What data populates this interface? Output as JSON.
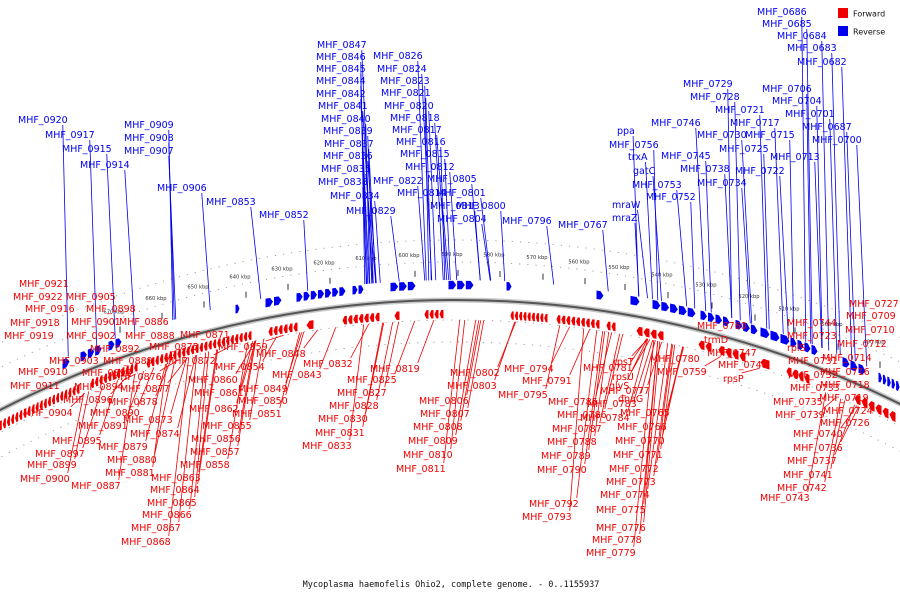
{
  "caption": "Mycoplasma haemofelis Ohio2, complete genome. - 0..1155937",
  "legend": [
    {
      "label": "Forward",
      "color": "#ee0000"
    },
    {
      "label": "Reverse",
      "color": "#0000ee"
    }
  ],
  "colors": {
    "forward": "#ee0000",
    "reverse": "#0000ee",
    "backbone": "#555555"
  },
  "ticks": [
    "490 kbp",
    "500 kbp",
    "510 kbp",
    "520 kbp",
    "530 kbp",
    "540 kbp",
    "550 kbp",
    "560 kbp",
    "570 kbp",
    "580 kbp",
    "590 kbp",
    "600 kbp",
    "610 kbp",
    "620 kbp",
    "630 kbp",
    "640 kbp",
    "650 kbp",
    "660 kbp",
    "670 kbp"
  ],
  "reverse_labels": [
    "MHF_0686",
    "MHF_0685",
    "MHF_0684",
    "MHF_0683",
    "MHF_0682",
    "MHF_0706",
    "MHF_0704",
    "MHF_0701",
    "MHF_0687",
    "MHF_0700",
    "MHF_0729",
    "MHF_0728",
    "MHF_0721",
    "MHF_0717",
    "MHF_0730",
    "MHF_0715",
    "MHF_0725",
    "MHF_0713",
    "MHF_0722",
    "MHF_0746",
    "MHF_0756",
    "MHF_0745",
    "MHF_0738",
    "MHF_0734",
    "MHF_0753",
    "MHF_0752",
    "ppa",
    "trxA",
    "gatC",
    "mraW",
    "mraZ",
    "MHF_0767",
    "MHF_0796",
    "MHF_0826",
    "MHF_0824",
    "MHF_0823",
    "MHF_0821",
    "MHF_0820",
    "MHF_0818",
    "MHF_0817",
    "MHF_0816",
    "MHF_0815",
    "MHF_0812",
    "MHF_0805",
    "MHF_0801",
    "MHF_0800",
    "MHF_0813",
    "MHF_0814",
    "MHF_0804",
    "MHF_0847",
    "MHF_0846",
    "MHF_0845",
    "MHF_0844",
    "MHF_0842",
    "MHF_0841",
    "MHF_0840",
    "MHF_0839",
    "MHF_0837",
    "MHF_0836",
    "MHF_0835",
    "MHF_0838",
    "MHF_0834",
    "MHF_0822",
    "MHF_0829",
    "MHF_0853",
    "MHF_0852",
    "MHF_0920",
    "MHF_0917",
    "MHF_0915",
    "MHF_0914",
    "MHF_0909",
    "MHF_0908",
    "MHF_0907",
    "MHF_0906"
  ],
  "forward_labels": [
    "MHF_0921",
    "MHF_0922",
    "MHF_0916",
    "MHF_0918",
    "MHF_0919",
    "MHF_0910",
    "MHF_0911",
    "MHF_0903",
    "MHF_0904",
    "MHF_0896",
    "MHF_0895",
    "MHF_0897",
    "MHF_0899",
    "MHF_0900",
    "MHF_0905",
    "MHF_0898",
    "MHF_0901",
    "MHF_0902",
    "MHF_0892",
    "MHF_0893",
    "MHF_0894",
    "MHF_0890",
    "MHF_0891",
    "MHF_0880",
    "MHF_0881",
    "MHF_0887",
    "MHF_0886",
    "MHF_0888",
    "MHF_0875",
    "MHF_0889",
    "MHF_0876",
    "MHF_0877",
    "MHF_0878",
    "MHF_0873",
    "MHF_0874",
    "MHF_0879",
    "MHF_0871",
    "MHF_0872",
    "MHF_0859",
    "MHF_0860",
    "MHF_0861",
    "MHF_0862",
    "MHF_0863",
    "MHF_0864",
    "MHF_0865",
    "MHF_0866",
    "MHF_0867",
    "MHF_0868",
    "MHF_0854",
    "MHF_0849",
    "MHF_0850",
    "MHF_0851",
    "MHF_0855",
    "MHF_0856",
    "MHF_0857",
    "MHF_0858",
    "MHF_0848",
    "MHF_0843",
    "MHF_0832",
    "MHF_0825",
    "MHF_0827",
    "MHF_0828",
    "MHF_0830",
    "MHF_0831",
    "MHF_0833",
    "MHF_0819",
    "MHF_0802",
    "MHF_0803",
    "MHF_0806",
    "MHF_0807",
    "MHF_0808",
    "MHF_0809",
    "MHF_0810",
    "MHF_0811",
    "MHF_0794",
    "MHF_0791",
    "MHF_0795",
    "MHF_0785",
    "MHF_0786",
    "MHF_0787",
    "MHF_0788",
    "MHF_0789",
    "MHF_0790",
    "MHF_0792",
    "MHF_0793",
    "MHF_0781",
    "MHF_0783",
    "MHF_0784",
    "MHF_0777",
    "rpsT",
    "rpsU",
    "glyS",
    "dnaG",
    "MHF_0765",
    "MHF_0766",
    "MHF_0770",
    "MHF_0771",
    "MHF_0772",
    "MHF_0773",
    "MHF_0774",
    "MHF_0775",
    "MHF_0776",
    "MHF_0778",
    "MHF_0779",
    "MHF_0780",
    "MHF_0759",
    "MHF_0760",
    "trmD",
    "MHF_0747",
    "MHF_0748",
    "rpsP",
    "rplS",
    "MHF_0731",
    "MHF_0732",
    "MHF_0733",
    "MHF_0735",
    "MHF_0739",
    "MHF_0740",
    "MHF_0736",
    "MHF_0737",
    "MHF_0741",
    "MHF_0742",
    "MHF_0743",
    "MHF_0744",
    "MHF_0723",
    "MHF_0724",
    "MHF_0726",
    "MHF_0727",
    "MHF_0709",
    "MHF_0710",
    "MHF_0712",
    "MHF_0714",
    "MHF_0716",
    "MHF_0718",
    "MHF_0719",
    "MHF_0720"
  ]
}
